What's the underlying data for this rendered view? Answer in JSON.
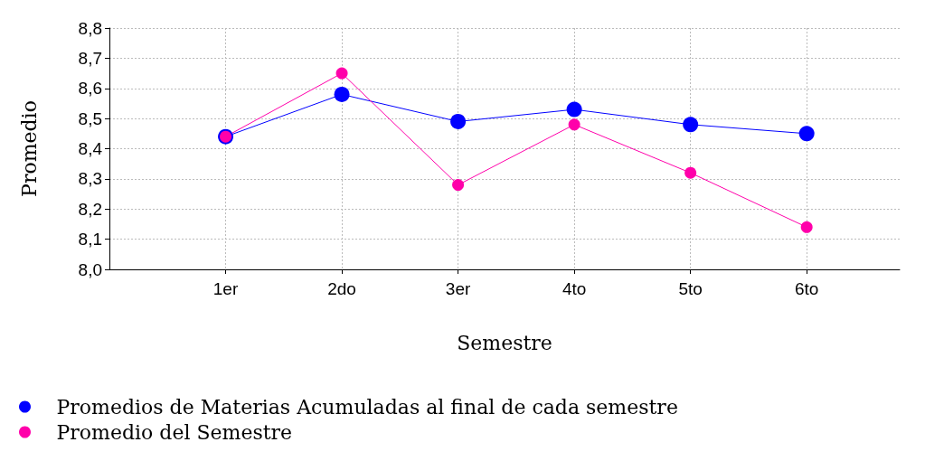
{
  "chart_data": {
    "type": "line",
    "xlabel": "Semestre",
    "ylabel": "Promedio",
    "x": [
      1,
      2,
      3,
      4,
      5,
      6
    ],
    "xlim": [
      0,
      6.8
    ],
    "xticks": [
      {
        "value": 1,
        "label": "1er"
      },
      {
        "value": 2,
        "label": "2do"
      },
      {
        "value": 3,
        "label": "3er"
      },
      {
        "value": 4,
        "label": "4to"
      },
      {
        "value": 5,
        "label": "5to"
      },
      {
        "value": 6,
        "label": "6to"
      }
    ],
    "ylim": [
      8.0,
      8.8
    ],
    "yticks": [
      {
        "value": 8.0,
        "label": "8,0"
      },
      {
        "value": 8.1,
        "label": "8,1"
      },
      {
        "value": 8.2,
        "label": "8,2"
      },
      {
        "value": 8.3,
        "label": "8,3"
      },
      {
        "value": 8.4,
        "label": "8,4"
      },
      {
        "value": 8.5,
        "label": "8,5"
      },
      {
        "value": 8.6,
        "label": "8,6"
      },
      {
        "value": 8.7,
        "label": "8,7"
      },
      {
        "value": 8.8,
        "label": "8,8"
      }
    ],
    "series": [
      {
        "name": "Promedios de Materias Acumuladas al final de cada semestre",
        "color": "#0000ff",
        "values": [
          8.44,
          8.58,
          8.49,
          8.53,
          8.48,
          8.45
        ]
      },
      {
        "name": "Promedio del Semestre",
        "color": "#ff00aa",
        "values": [
          8.44,
          8.65,
          8.28,
          8.48,
          8.32,
          8.14
        ]
      }
    ],
    "grid": true,
    "legend": "bottom left",
    "marker": "circle",
    "line_style": "solid"
  }
}
